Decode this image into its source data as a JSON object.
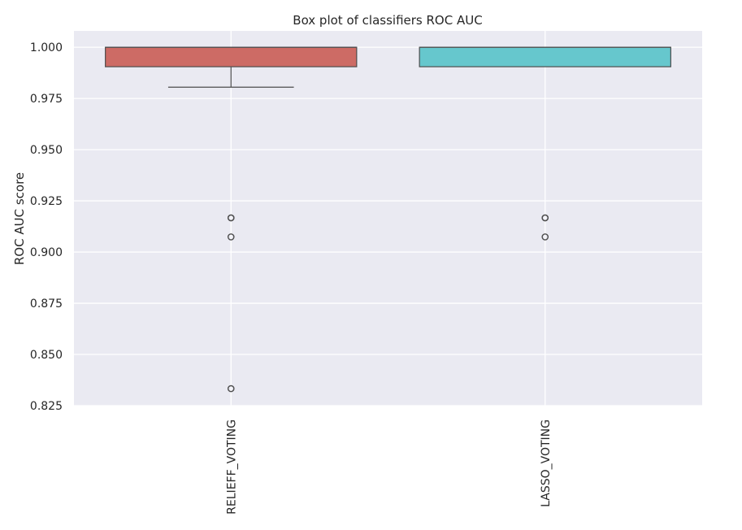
{
  "chart_data": {
    "type": "box",
    "title": "Box plot of classifiers ROC AUC",
    "xlabel": "",
    "ylabel": "ROC AUC score",
    "ylim": [
      0.825,
      1.008
    ],
    "yticks": [
      0.825,
      0.85,
      0.875,
      0.9,
      0.925,
      0.95,
      0.975,
      1.0
    ],
    "ytick_labels": [
      "0.825",
      "0.850",
      "0.875",
      "0.900",
      "0.925",
      "0.950",
      "0.975",
      "1.000"
    ],
    "grid": true,
    "categories": [
      "RELIEFF_VOTING",
      "LASSO_VOTING"
    ],
    "boxes": [
      {
        "name": "RELIEFF_VOTING",
        "color": "#CD6B65",
        "whisker_low": 0.9805,
        "q1": 0.9905,
        "median": 1.0,
        "q3": 1.0,
        "whisker_high": 1.0,
        "outliers": [
          0.9167,
          0.9167,
          0.9074,
          0.8333
        ]
      },
      {
        "name": "LASSO_VOTING",
        "color": "#66C7CD",
        "whisker_low": 0.9905,
        "q1": 0.9905,
        "median": 1.0,
        "q3": 1.0,
        "whisker_high": 1.0,
        "outliers": [
          0.9167,
          0.9167,
          0.9074
        ]
      }
    ]
  }
}
